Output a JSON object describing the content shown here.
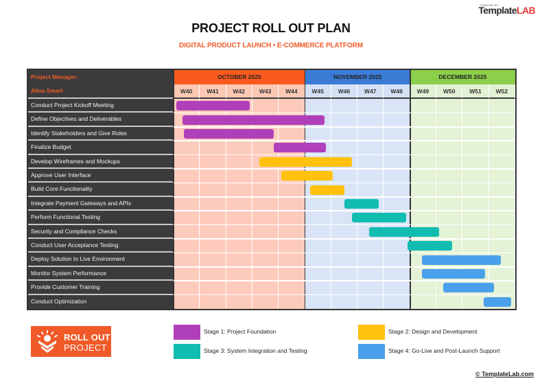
{
  "brand": {
    "small": "CREATED BY",
    "template": "Template",
    "lab": "LAB"
  },
  "header": {
    "title": "PROJECT ROLL OUT PLAN",
    "subtitle": "DIGITAL PRODUCT LAUNCH • E-COMMERCE PLATFORM"
  },
  "grid": {
    "manager_label": "Project Manager:",
    "manager_name": "Alisa Smart"
  },
  "chart_data": {
    "type": "gantt",
    "title": "PROJECT ROLL OUT PLAN",
    "subtitle": "DIGITAL PRODUCT LAUNCH • E-COMMERCE PLATFORM",
    "months": [
      {
        "label": "OCTOBER 2025",
        "weeks": [
          "W40",
          "W41",
          "W42",
          "W43",
          "W44"
        ],
        "header_color": "#fb5a1e",
        "week_color": "#fcc8b4",
        "body_color": "#fdcbbb"
      },
      {
        "label": "NOVEMBER 2025",
        "weeks": [
          "W45",
          "W46",
          "W47",
          "W48"
        ],
        "header_color": "#3a7bd5",
        "week_color": "#d4e1f5",
        "body_color": "#d9e4f6"
      },
      {
        "label": "DECEMBER 2025",
        "weeks": [
          "W49",
          "W50",
          "W51",
          "W52"
        ],
        "header_color": "#8bcf4a",
        "week_color": "#e2f0d3",
        "body_color": "#e4f2d6"
      }
    ],
    "week_range": [
      40,
      52
    ],
    "tasks": [
      {
        "name": "Conduct Project Kickoff Meeting",
        "stage": 1,
        "start": 40.1,
        "end": 42.9
      },
      {
        "name": "Define Objectives and Deliverables",
        "stage": 1,
        "start": 40.35,
        "end": 45.75
      },
      {
        "name": "Identify Stakeholders and Give Roles",
        "stage": 1,
        "start": 40.4,
        "end": 43.8
      },
      {
        "name": "Finalize Budget",
        "stage": 1,
        "start": 43.8,
        "end": 45.8
      },
      {
        "name": "Develop Wireframes and Mockups",
        "stage": 2,
        "start": 43.25,
        "end": 46.8
      },
      {
        "name": "Approve User Interface",
        "stage": 2,
        "start": 44.1,
        "end": 46.05
      },
      {
        "name": "Build Core Functionality",
        "stage": 2,
        "start": 45.2,
        "end": 46.5
      },
      {
        "name": "Integrate Payment Gateways and APIs",
        "stage": 3,
        "start": 46.5,
        "end": 47.8
      },
      {
        "name": "Perform Functional Testing",
        "stage": 3,
        "start": 46.8,
        "end": 48.85
      },
      {
        "name": "Security and Compliance Checks",
        "stage": 3,
        "start": 47.45,
        "end": 50.1
      },
      {
        "name": "Conduct User Acceptance Testing",
        "stage": 3,
        "start": 48.9,
        "end": 50.6
      },
      {
        "name": "Deploy Solution to Live Environment",
        "stage": 4,
        "start": 49.45,
        "end": 52.45
      },
      {
        "name": "Monitor System Performance",
        "stage": 4,
        "start": 49.45,
        "end": 51.85
      },
      {
        "name": "Provide Customer Training",
        "stage": 4,
        "start": 50.25,
        "end": 52.2
      },
      {
        "name": "Conduct Optimization",
        "stage": 4,
        "start": 51.8,
        "end": 52.85
      }
    ],
    "legend": [
      {
        "stage": 1,
        "label": "Stage 1: Project Foundation",
        "color": "#b03fba"
      },
      {
        "stage": 2,
        "label": "Stage 2: Design and Development",
        "color": "#ffc10e"
      },
      {
        "stage": 3,
        "label": "Stage 3: System Integration and Testing",
        "color": "#11bcb0"
      },
      {
        "stage": 4,
        "label": "Stage 4: Go-Live and Post-Launch Support",
        "color": "#4aa0ea"
      }
    ]
  },
  "logo": {
    "line1": "ROLL OUT",
    "line2": "PROJECT"
  },
  "footer": {
    "copyright": "© TemplateLab.com"
  }
}
